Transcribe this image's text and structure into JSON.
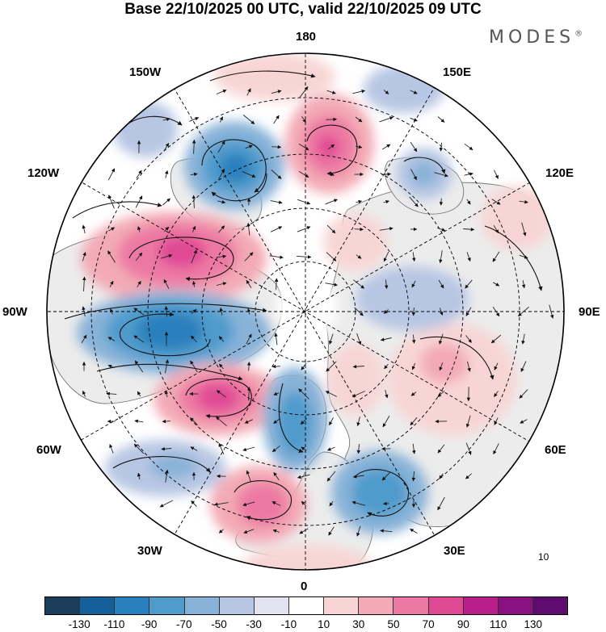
{
  "title": "Base 22/10/2025 00 UTC, valid 22/10/2025 09 UTC",
  "logo": "MODES",
  "logo_mark": "®",
  "longitude_labels": {
    "lon_180": "180",
    "lon_150e": "150E",
    "lon_120e": "120E",
    "lon_90e": "90E",
    "lon_60e": "60E",
    "lon_30e": "30E",
    "lon_0": "0",
    "lon_30w": "30W",
    "lon_60w": "60W",
    "lon_90w": "90W",
    "lon_120w": "120W",
    "lon_150w": "150W"
  },
  "reference_vector_label": "10",
  "colorbar": {
    "colors": [
      "#1a3d5c",
      "#14609a",
      "#2a80bd",
      "#4f9bcc",
      "#88b2d8",
      "#b7c6e3",
      "#e2e3ef",
      "#ffffff",
      "#f8d5d5",
      "#f3aab6",
      "#ec79a3",
      "#e04994",
      "#b81f8a",
      "#8a1180",
      "#5e0c6e"
    ],
    "tick_labels": [
      "-130",
      "-110",
      "-90",
      "-70",
      "-50",
      "-30",
      "-10",
      "10",
      "30",
      "50",
      "70",
      "90",
      "110",
      "130"
    ]
  },
  "colors": {
    "land": "#ececec",
    "coast": "#777777",
    "background": "#ffffff"
  }
}
